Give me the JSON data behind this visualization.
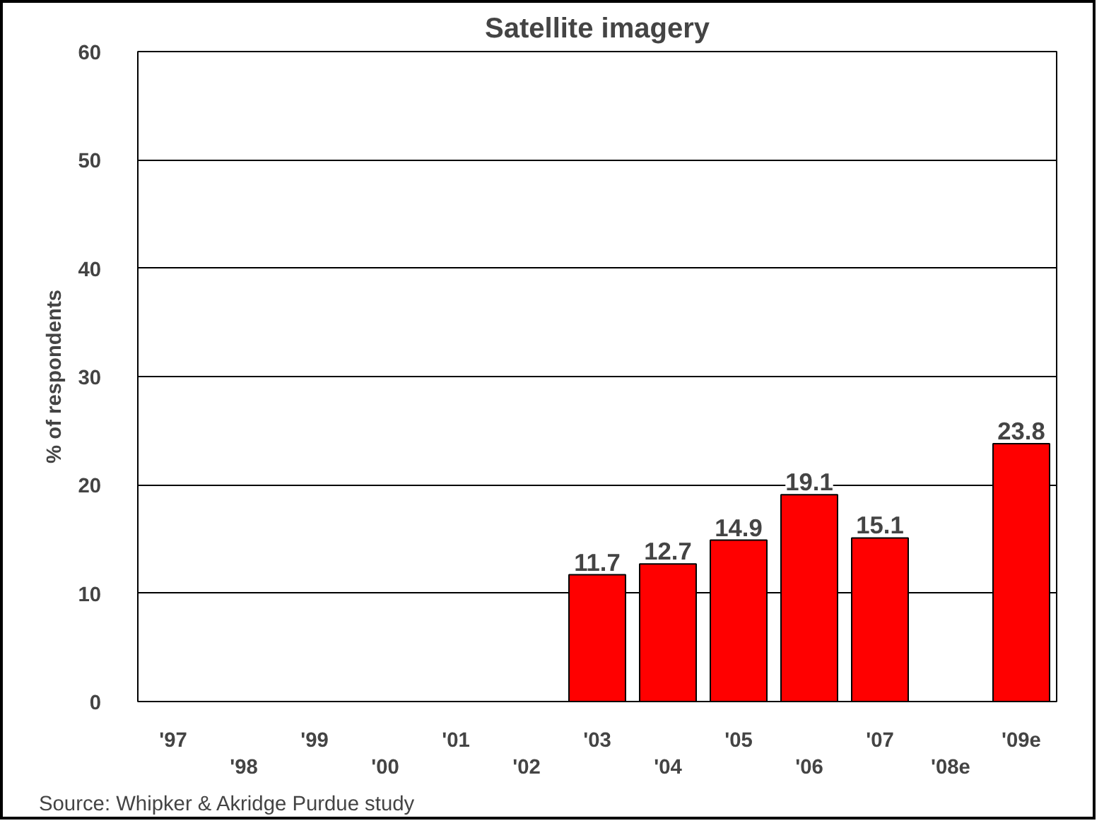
{
  "chart_data": {
    "type": "bar",
    "title": "Satellite imagery",
    "ylabel": "% of respondents",
    "categories": [
      "'97",
      "'98",
      "'99",
      "'00",
      "'01",
      "'02",
      "'03",
      "'04",
      "'05",
      "'06",
      "'07",
      "'08e",
      "'09e"
    ],
    "values": [
      null,
      null,
      null,
      null,
      null,
      null,
      11.7,
      12.7,
      14.9,
      19.1,
      15.1,
      null,
      23.8
    ],
    "color": "#ff0000",
    "ylim": [
      0,
      60
    ],
    "yticks": [
      0,
      10,
      20,
      30,
      40,
      50,
      60
    ],
    "grid": "y",
    "data_labels": true,
    "annotations": [
      "Source: Whipker & Akridge Purdue study"
    ]
  }
}
